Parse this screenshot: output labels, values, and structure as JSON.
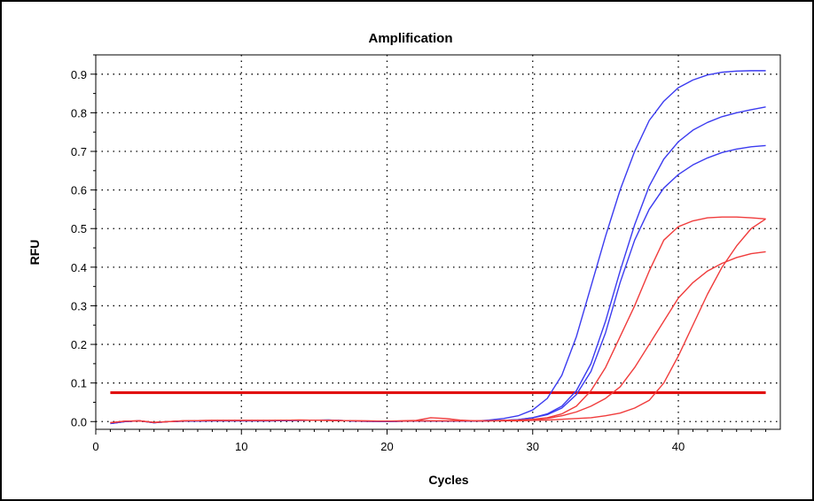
{
  "chart_data": {
    "type": "line",
    "title": "Amplification",
    "xlabel": "Cycles",
    "ylabel": "RFU",
    "xlim": [
      0,
      47
    ],
    "ylim": [
      -0.02,
      0.95
    ],
    "x_ticks": [
      0,
      10,
      20,
      30,
      40
    ],
    "y_ticks": [
      0.0,
      0.1,
      0.2,
      0.3,
      0.4,
      0.5,
      0.6,
      0.7,
      0.8,
      0.9
    ],
    "x_tick_labels": [
      "0",
      "10",
      "20",
      "30",
      "40"
    ],
    "y_tick_labels": [
      "0.0",
      "0.1",
      "0.2",
      "0.3",
      "0.4",
      "0.5",
      "0.6",
      "0.7",
      "0.8",
      "0.9"
    ],
    "grid": true,
    "threshold": {
      "value": 0.075,
      "x_range": [
        1,
        46
      ],
      "color": "#e00000"
    },
    "colors": {
      "blue": "#3b3bf0",
      "red": "#f03c3c"
    },
    "series": [
      {
        "color": "blue",
        "x": [
          1,
          2,
          3,
          4,
          5,
          6,
          8,
          10,
          12,
          14,
          16,
          18,
          20,
          22,
          24,
          26,
          27,
          28,
          29,
          30,
          31,
          32,
          33,
          34,
          35,
          36,
          37,
          38,
          39,
          40,
          41,
          42,
          43,
          44,
          45,
          46
        ],
        "y": [
          -0.005,
          0.0,
          0.002,
          -0.003,
          0.0,
          0.001,
          0.002,
          0.002,
          0.002,
          0.003,
          0.004,
          0.001,
          0.0,
          0.002,
          0.001,
          0.001,
          0.004,
          0.008,
          0.015,
          0.03,
          0.06,
          0.12,
          0.22,
          0.35,
          0.48,
          0.6,
          0.7,
          0.78,
          0.83,
          0.865,
          0.885,
          0.898,
          0.905,
          0.908,
          0.909,
          0.909
        ]
      },
      {
        "color": "blue",
        "x": [
          1,
          2,
          3,
          4,
          5,
          6,
          8,
          10,
          12,
          14,
          16,
          18,
          20,
          22,
          24,
          26,
          27,
          28,
          29,
          30,
          31,
          32,
          33,
          34,
          35,
          36,
          37,
          38,
          39,
          40,
          41,
          42,
          43,
          44,
          45,
          46
        ],
        "y": [
          -0.005,
          0.0,
          0.002,
          -0.003,
          0.0,
          0.001,
          0.002,
          0.002,
          0.002,
          0.003,
          0.004,
          0.001,
          0.0,
          0.002,
          0.001,
          0.001,
          0.002,
          0.003,
          0.005,
          0.01,
          0.02,
          0.04,
          0.08,
          0.15,
          0.26,
          0.39,
          0.51,
          0.61,
          0.68,
          0.725,
          0.755,
          0.775,
          0.79,
          0.8,
          0.808,
          0.815
        ]
      },
      {
        "color": "blue",
        "x": [
          1,
          2,
          3,
          4,
          5,
          6,
          8,
          10,
          12,
          14,
          16,
          18,
          20,
          22,
          24,
          26,
          27,
          28,
          29,
          30,
          31,
          32,
          33,
          34,
          35,
          36,
          37,
          38,
          39,
          40,
          41,
          42,
          43,
          44,
          45,
          46
        ],
        "y": [
          -0.005,
          0.0,
          0.002,
          -0.003,
          0.0,
          0.001,
          0.002,
          0.002,
          0.002,
          0.003,
          0.004,
          0.001,
          0.0,
          0.002,
          0.001,
          0.001,
          0.002,
          0.003,
          0.005,
          0.01,
          0.018,
          0.035,
          0.07,
          0.13,
          0.23,
          0.36,
          0.47,
          0.55,
          0.605,
          0.64,
          0.665,
          0.683,
          0.697,
          0.706,
          0.712,
          0.715
        ]
      },
      {
        "color": "red",
        "x": [
          1,
          2,
          3,
          4,
          5,
          6,
          8,
          10,
          12,
          14,
          16,
          18,
          20,
          22,
          23,
          24,
          25,
          26,
          27,
          28,
          29,
          30,
          31,
          32,
          33,
          34,
          35,
          36,
          37,
          38,
          39,
          40,
          41,
          42,
          43,
          44,
          45,
          46
        ],
        "y": [
          -0.003,
          0.001,
          0.002,
          -0.002,
          0.0,
          0.002,
          0.003,
          0.003,
          0.003,
          0.004,
          0.003,
          0.002,
          0.001,
          0.003,
          0.01,
          0.008,
          0.004,
          0.002,
          0.002,
          0.003,
          0.004,
          0.006,
          0.01,
          0.02,
          0.04,
          0.08,
          0.14,
          0.22,
          0.3,
          0.39,
          0.47,
          0.505,
          0.52,
          0.528,
          0.53,
          0.53,
          0.528,
          0.525
        ]
      },
      {
        "color": "red",
        "x": [
          1,
          2,
          3,
          4,
          5,
          6,
          8,
          10,
          12,
          14,
          16,
          18,
          20,
          22,
          24,
          26,
          27,
          28,
          29,
          30,
          31,
          32,
          33,
          34,
          35,
          36,
          37,
          38,
          39,
          40,
          41,
          42,
          43,
          44,
          45,
          46
        ],
        "y": [
          -0.003,
          0.001,
          0.002,
          -0.002,
          0.0,
          0.002,
          0.003,
          0.003,
          0.003,
          0.004,
          0.003,
          0.002,
          0.001,
          0.002,
          0.002,
          0.002,
          0.002,
          0.003,
          0.004,
          0.005,
          0.008,
          0.015,
          0.025,
          0.04,
          0.06,
          0.09,
          0.14,
          0.2,
          0.26,
          0.32,
          0.36,
          0.39,
          0.41,
          0.425,
          0.435,
          0.44
        ]
      },
      {
        "color": "red",
        "x": [
          1,
          2,
          3,
          4,
          5,
          6,
          8,
          10,
          12,
          14,
          16,
          18,
          20,
          22,
          24,
          26,
          27,
          28,
          29,
          30,
          31,
          32,
          33,
          34,
          35,
          36,
          37,
          38,
          39,
          40,
          41,
          42,
          43,
          44,
          45,
          46
        ],
        "y": [
          -0.003,
          0.001,
          0.002,
          -0.002,
          0.0,
          0.002,
          0.003,
          0.003,
          0.003,
          0.004,
          0.003,
          0.002,
          0.001,
          0.002,
          0.002,
          0.002,
          0.002,
          0.002,
          0.002,
          0.003,
          0.004,
          0.006,
          0.008,
          0.01,
          0.015,
          0.022,
          0.035,
          0.055,
          0.1,
          0.17,
          0.25,
          0.33,
          0.4,
          0.455,
          0.5,
          0.525
        ]
      }
    ]
  }
}
